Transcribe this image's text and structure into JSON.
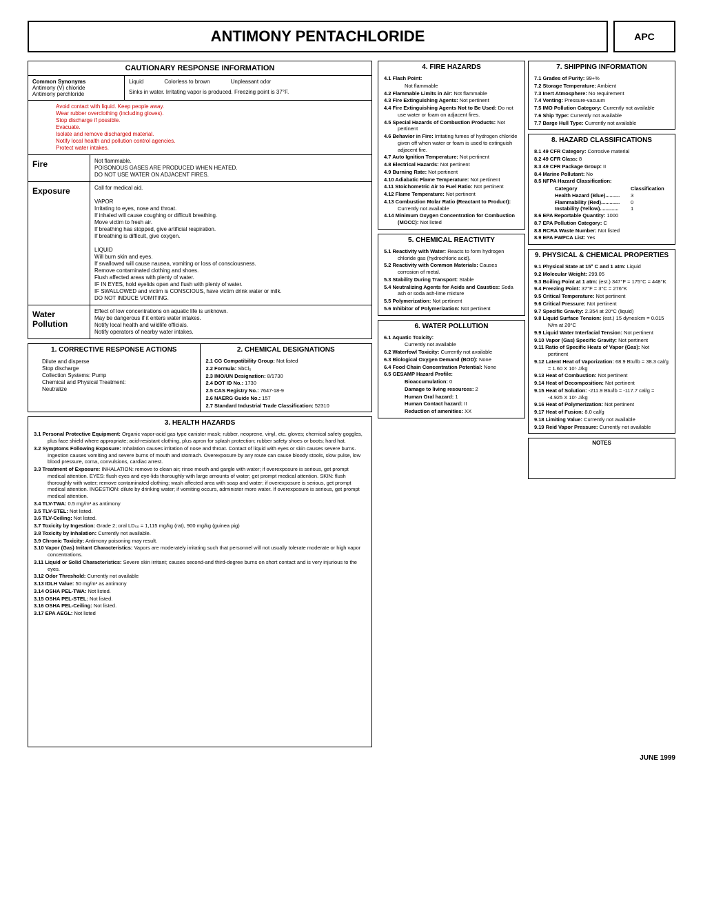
{
  "header": {
    "title": "ANTIMONY PENTACHLORIDE",
    "code": "APC"
  },
  "cautionary": {
    "title": "CAUTIONARY RESPONSE INFORMATION",
    "synonyms_label": "Common Synonyms",
    "synonyms": "Antimony (V) chloride\nAntimony perchloride",
    "phys1": "Liquid",
    "phys2": "Colorless to brown",
    "phys3": "Unpleasant odor",
    "phys_note": "Sinks in water. Irritating vapor is produced. Freezing point is 37°F.",
    "avoid": "Avoid contact with liquid.  Keep people away.\nWear rubber overclothing (including gloves).\nStop discharge if possible.\nEvacuate.\nIsolate and remove discharged material.\nNotify local health and pollution control agencies.\nProtect water intakes.",
    "fire_label": "Fire",
    "fire": "Not flammable.\nPOISONOUS GASES ARE PRODUCED WHEN HEATED.\nDO NOT USE WATER ON ADJACENT FIRES.",
    "exposure_label": "Exposure",
    "exposure": "Call for medical aid.\n\nVAPOR\nIrritating to eyes, nose and throat.\nIf inhaled will cause coughing or difficult breathing.\nMove victim to fresh air.\nIf breathing has stopped, give artificial respiration.\nIf breathing is difficult, give oxygen.\n\nLIQUID\nWill burn skin and eyes.\nIf swallowed will cause nausea, vomiting or loss of consciousness.\nRemove contaminated clothing and shoes.\nFlush affected areas with plenty of water.\nIF IN EYES, hold eyelids open and flush with plenty of water.\nIF SWALLOWED and victim is CONSCIOUS, have victim drink water or milk.\nDO NOT INDUCE VOMITING.",
    "water_label": "Water\nPollution",
    "water": "Effect of low concentrations on aquatic life is unknown.\nMay be dangerous if it enters water intakes.\nNotify local health and wildlife officials.\nNotify operators of nearby water intakes."
  },
  "sec1": {
    "title": "1. CORRECTIVE RESPONSE ACTIONS",
    "body": "Dilute and disperse\nStop discharge\nCollection Systems:  Pump\nChemical and Physical Treatment:\nNeutralize"
  },
  "sec2": {
    "title": "2.  CHEMICAL DESIGNATIONS",
    "items": [
      "2.1   CG Compatibility Group: Not listed",
      "2.2   Formula: SbCl₅",
      "2.3   IMO/UN Designation: 8/1730",
      "2.4   DOT ID No.: 1730",
      "2.5   CAS Registry No.: 7647-18-9",
      "2.6   NAERG Guide No.: 157",
      "2.7   Standard Industrial Trade Classification: 52310"
    ]
  },
  "sec3": {
    "title": "3.  HEALTH HAZARDS",
    "items": [
      [
        "3.1",
        "Personal Protective Equipment:",
        " Organic vapor-acid gas type canister mask; rubber, neoprene, vinyl, etc. gloves; chemical safety goggles, plus face shield where appropriate; acid-resistant clothing, plus apron for splash protection; rubber safety shoes or boots; hard hat."
      ],
      [
        "3.2",
        "Symptoms Following Exposure:",
        " Inhalation causes irritation of nose and throat.  Contact of liquid with eyes or skin causes severe burns.  Ingestion causes vomiting and severe burns of mouth and stomach.  Overexposure by any route can cause bloody stools, slow pulse, low blood pressure, coma, convulsions, cardiac arrest."
      ],
      [
        "3.3",
        "Treatment of Exposure:",
        " INHALATION:  remove to clean air; rinse mouth and gargle with water; if overexposure is serious, get prompt medical attention.  EYES:  flush eyes and eye-lids thoroughly with large amounts of water; get prompt medical attention.  SKIN:  flush thoroughly with water; remove contaminated clothing; wash affected area with soap and water; if overexposure is serious, get prompt medical attention.  INGESTION: dilute by drinking water; if vomiting occurs, administer more water.  If overexposure is serious, get prompt medical attention."
      ],
      [
        "3.4",
        "TLV-TWA:",
        " 0.5 mg/m³ as antimony"
      ],
      [
        "3.5",
        "TLV-STEL:",
        " Not listed."
      ],
      [
        "3.6",
        "TLV-Ceiling:",
        " Not listed."
      ],
      [
        "3.7",
        "Toxicity by Ingestion:",
        " Grade 2;  oral LD₅₀ = 1,115 mg/kg (rat), 900 mg/kg (guinea pig)"
      ],
      [
        "3.8",
        "Toxicity by Inhalation:",
        " Currently not available."
      ],
      [
        "3.9",
        "Chronic Toxicity:",
        " Antimony poisoning may result."
      ],
      [
        "3.10",
        "Vapor (Gas) Irritant Characteristics:",
        " Vapors are moderately irritating such that personnel will not usually tolerate moderate or high vapor concentrations."
      ],
      [
        "3.11",
        "Liquid or Solid Characteristics:",
        " Severe skin irritant; causes second-and third-degree burns on short contact and is very injurious to the eyes."
      ],
      [
        "3.12",
        "Odor Threshold:",
        " Currently not available"
      ],
      [
        "3.13",
        "IDLH Value:",
        " 50 mg/m³ as antimony"
      ],
      [
        "3.14",
        "OSHA PEL-TWA:",
        " Not listed."
      ],
      [
        "3.15",
        "OSHA PEL-STEL:",
        " Not listed."
      ],
      [
        "3.16",
        "OSHA PEL-Ceiling:",
        " Not listed."
      ],
      [
        "3.17",
        "EPA AEGL:",
        " Not listed"
      ]
    ]
  },
  "sec4": {
    "title": "4.  FIRE HAZARDS",
    "items": [
      [
        "4.1",
        "Flash Point:",
        "Not flammable"
      ],
      [
        "4.2",
        "Flammable Limits in Air:",
        " Not flammable"
      ],
      [
        "4.3",
        "Fire Extinguishing Agents:",
        " Not pertinent"
      ],
      [
        "4.4",
        "Fire Extinguishing Agents Not to Be Used:",
        " Do not use water or foam on adjacent fires."
      ],
      [
        "4.5",
        "Special Hazards of Combustion Products:",
        " Not pertinent"
      ],
      [
        "4.6",
        "Behavior in Fire:",
        " Irritating fumes of hydrogen chloride given off when water or foam is used to extinguish adjacent fire."
      ],
      [
        "4.7",
        "Auto Ignition Temperature:",
        " Not pertinent"
      ],
      [
        "4.8",
        "Electrical Hazards:",
        " Not pertinent"
      ],
      [
        "4.9",
        "Burning Rate:",
        " Not pertinent"
      ],
      [
        "4.10",
        "Adiabatic Flame Temperature:",
        " Not pertinent"
      ],
      [
        "4.11",
        "Stoichometric Air to Fuel Ratio:",
        " Not pertinent"
      ],
      [
        "4.12",
        "Flame Temperature:",
        " Not pertinent"
      ],
      [
        "4.13",
        "Combustion Molar Ratio (Reactant to Product):",
        " Currently not available"
      ],
      [
        "4.14",
        "Minimum Oxygen Concentration for Combustion (MOCC):",
        " Not listed"
      ]
    ]
  },
  "sec5": {
    "title": "5.  CHEMICAL REACTIVITY",
    "items": [
      [
        "5.1",
        "Reactivity with Water:",
        " Reacts to form hydrogen chloride gas (hydrochloric acid)."
      ],
      [
        "5.2",
        "Reactivity with Common Materials:",
        " Causes corrosion of metal."
      ],
      [
        "5.3",
        "Stability During Transport:",
        " Stable"
      ],
      [
        "5.4",
        "Neutralizing Agents for Acids and Caustics:",
        " Soda ash or soda ash-lime mixture"
      ],
      [
        "5.5",
        "Polymerization:",
        " Not pertinent"
      ],
      [
        "5.6",
        "Inhibitor of Polymerization:",
        " Not pertinent"
      ]
    ]
  },
  "sec6": {
    "title": "6.  WATER POLLUTION",
    "items": [
      [
        "6.1",
        "Aquatic Toxicity:",
        "Currently not available"
      ],
      [
        "6.2",
        "Waterfowl Toxicity:",
        " Currently not available"
      ],
      [
        "6.3",
        "Biological Oxygen Demand (BOD):",
        " None"
      ],
      [
        "6.4",
        "Food Chain Concentration Potential:",
        " None"
      ],
      [
        "6.5",
        "GESAMP Hazard Profile:",
        ""
      ]
    ],
    "gesamp": [
      "Bioaccumulation: 0",
      "Damage to living resources: 2",
      "Human Oral hazard: 1",
      "Human Contact hazard: II",
      "Reduction of amenities: XX"
    ]
  },
  "sec7": {
    "title": "7.  SHIPPING INFORMATION",
    "items": [
      [
        "7.1",
        "Grades of Purity:",
        " 99+%"
      ],
      [
        "7.2",
        "Storage Temperature:",
        " Ambient"
      ],
      [
        "7.3",
        "Inert Atmosphere:",
        " No requirement"
      ],
      [
        "7.4",
        "Venting:",
        " Pressure-vacuum"
      ],
      [
        "7.5",
        "IMO Pollution Category:",
        " Currently not available"
      ],
      [
        "7.6",
        "Ship Type:",
        " Currently not available"
      ],
      [
        "7.7",
        "Barge Hull Type:",
        " Currently not available"
      ]
    ]
  },
  "sec8": {
    "title": "8.  HAZARD CLASSIFICATIONS",
    "items": [
      [
        "8.1",
        "49 CFR Category:",
        " Corrosive material"
      ],
      [
        "8.2",
        "49 CFR Class:",
        " 8"
      ],
      [
        "8.3",
        "49 CFR Package Group:",
        " II"
      ],
      [
        "8.4",
        "Marine Pollutant:",
        " No"
      ],
      [
        "8.5",
        "NFPA Hazard Classification:",
        ""
      ]
    ],
    "nfpa_head": [
      "Category",
      "Classification"
    ],
    "nfpa": [
      [
        "Health Hazard (Blue)..........",
        "3"
      ],
      [
        "Flammability (Red).............",
        "0"
      ],
      [
        "Instability (Yellow).............",
        "1"
      ]
    ],
    "items2": [
      [
        "8.6",
        "EPA Reportable Quantity:",
        " 1000"
      ],
      [
        "8.7",
        "EPA Pollution Category:",
        " C"
      ],
      [
        "8.8",
        "RCRA Waste Number:",
        " Not listed"
      ],
      [
        "8.9",
        "EPA FWPCA List:",
        " Yes"
      ]
    ]
  },
  "sec9": {
    "title": "9.  PHYSICAL & CHEMICAL PROPERTIES",
    "items": [
      [
        "9.1",
        "Physical State at 15° C and 1 atm:",
        " Liquid"
      ],
      [
        "9.2",
        "Molecular Weight:",
        " 299.05"
      ],
      [
        "9.3",
        "Boiling Point at 1 atm:",
        " (est.) 347°F = 175°C = 448°K"
      ],
      [
        "9.4",
        "Freezing Point:",
        " 37°F = 3°C = 276°K"
      ],
      [
        "9.5",
        "Critical Temperature:",
        " Not pertinent"
      ],
      [
        "9.6",
        "Critical Pressure:",
        " Not pertinent"
      ],
      [
        "9.7",
        "Specific Gravity:",
        " 2.354 at 20°C (liquid)"
      ],
      [
        "9.8",
        "Liquid Surface Tension:",
        " (est.) 15 dynes/cm = 0.015 N/m at 20°C"
      ],
      [
        "9.9",
        "Liquid Water Interfacial Tension:",
        " Not pertinent"
      ],
      [
        "9.10",
        "Vapor (Gas) Specific Gravity:",
        " Not pertinent"
      ],
      [
        "9.11",
        "Ratio of Specific Heats of Vapor (Gas):",
        " Not pertinent"
      ],
      [
        "9.12",
        "Latent Heat of Vaporization:",
        " 68.9 Btu/lb = 38.3 cal/g = 1.60 X 10⁵ J/kg"
      ],
      [
        "9.13",
        "Heat of Combustion:",
        " Not pertinent"
      ],
      [
        "9.14",
        "Heat of Decomposition:",
        " Not pertinent"
      ],
      [
        "9.15",
        "Heat of Solution:",
        " -211.9 Btu/lb = -117.7 cal/g = -4.925 X 10⁵ J/kg"
      ],
      [
        "9.16",
        "Heat of Polymerization:",
        " Not pertinent"
      ],
      [
        "9.17",
        "Heat of Fusion:",
        " 8.0 cal/g"
      ],
      [
        "9.18",
        "Limiting Value:",
        " Currently not available"
      ],
      [
        "9.19",
        "Reid Vapor Pressure:",
        " Currently not available"
      ]
    ]
  },
  "notes": "NOTES",
  "footer": "JUNE 1999"
}
